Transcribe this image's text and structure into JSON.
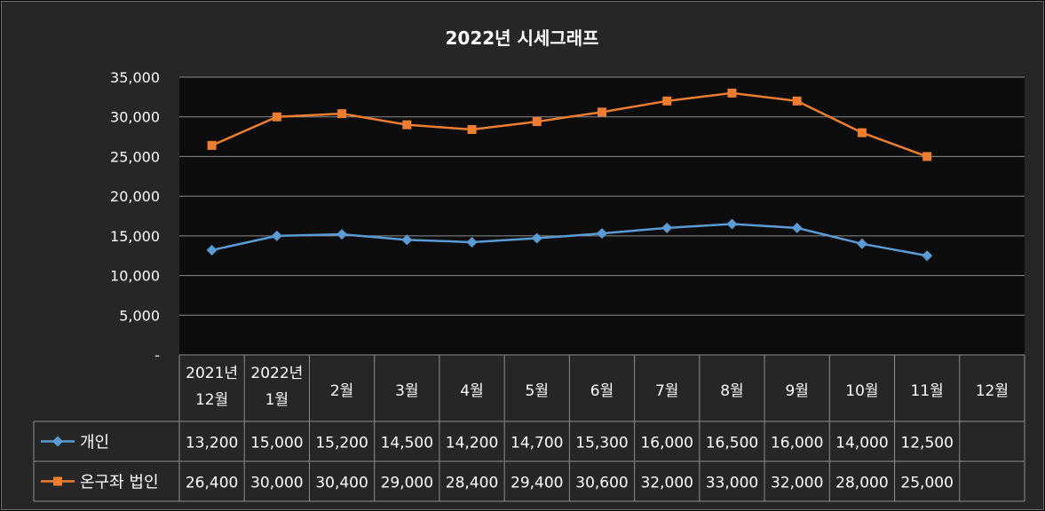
{
  "chart_data": {
    "type": "line",
    "title": "2022년 시세그래프",
    "categories": [
      "2021년 12월",
      "2022년 1월",
      "2월",
      "3월",
      "4월",
      "5월",
      "6월",
      "7월",
      "8월",
      "9월",
      "10월",
      "11월",
      "12월"
    ],
    "series": [
      {
        "name": "개인",
        "color": "#5b9bd5",
        "marker": "diamond",
        "values": [
          13200,
          15000,
          15200,
          14500,
          14200,
          14700,
          15300,
          16000,
          16500,
          16000,
          14000,
          12500,
          null
        ],
        "labels": [
          "13,200",
          "15,000",
          "15,200",
          "14,500",
          "14,200",
          "14,700",
          "15,300",
          "16,000",
          "16,500",
          "16,000",
          "14,000",
          "12,500",
          ""
        ]
      },
      {
        "name": "온구좌 법인",
        "color": "#ed7d31",
        "marker": "square",
        "values": [
          26400,
          30000,
          30400,
          29000,
          28400,
          29400,
          30600,
          32000,
          33000,
          32000,
          28000,
          25000,
          null
        ],
        "labels": [
          "26,400",
          "30,000",
          "30,400",
          "29,000",
          "28,400",
          "29,400",
          "30,600",
          "32,000",
          "33,000",
          "32,000",
          "28,000",
          "25,000",
          ""
        ]
      }
    ],
    "ylim": [
      0,
      35000
    ],
    "yticks": [
      0,
      5000,
      10000,
      15000,
      20000,
      25000,
      30000,
      35000
    ],
    "ytick_labels": [
      "-",
      "5,000",
      "10,000",
      "15,000",
      "20,000",
      "25,000",
      "30,000",
      "35,000"
    ],
    "grid": true,
    "data_table": true
  }
}
